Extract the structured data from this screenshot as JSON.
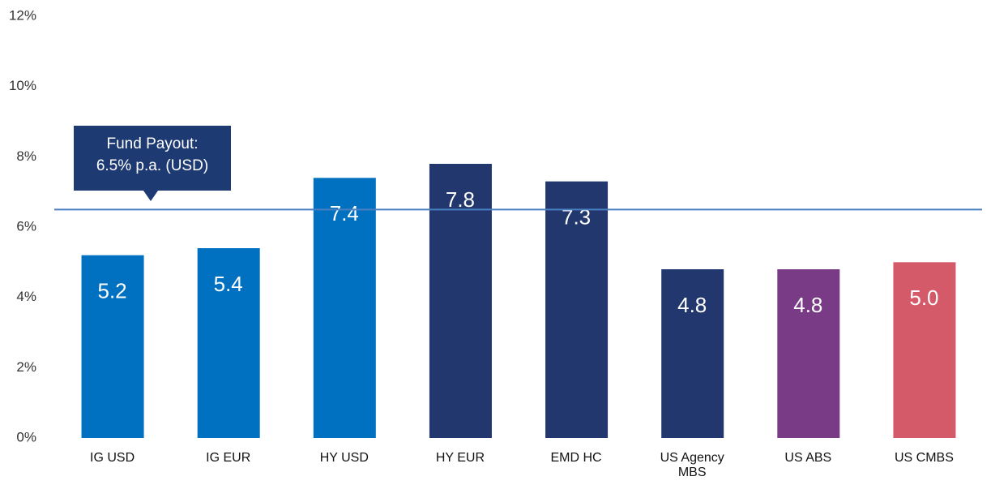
{
  "chart_data": {
    "type": "bar",
    "categories": [
      "IG USD",
      "IG EUR",
      "HY USD",
      "HY EUR",
      "EMD HC",
      "US Agency MBS",
      "US ABS",
      "US CMBS"
    ],
    "values": [
      5.2,
      5.4,
      7.4,
      7.8,
      7.3,
      4.8,
      4.8,
      5.0
    ],
    "value_labels": [
      "5.2",
      "5.4",
      "7.4",
      "7.8",
      "7.3",
      "4.8",
      "4.8",
      "5.0"
    ],
    "colors": [
      "#0070c0",
      "#0070c0",
      "#0070c0",
      "#23376f",
      "#23376f",
      "#23376f",
      "#7a3b86",
      "#d45a69"
    ],
    "ylim": [
      0,
      12
    ],
    "yticks": [
      {
        "value": 0,
        "label": "0%"
      },
      {
        "value": 2,
        "label": "2%"
      },
      {
        "value": 4,
        "label": "4%"
      },
      {
        "value": 6,
        "label": "6%"
      },
      {
        "value": 8,
        "label": "8%"
      },
      {
        "value": 10,
        "label": "10%"
      },
      {
        "value": 12,
        "label": "12%"
      }
    ],
    "reference_line": {
      "value": 6.5,
      "color": "#4a7fc1",
      "label": [
        "Fund Payout:",
        "6.5% p.a. (USD)"
      ]
    }
  }
}
